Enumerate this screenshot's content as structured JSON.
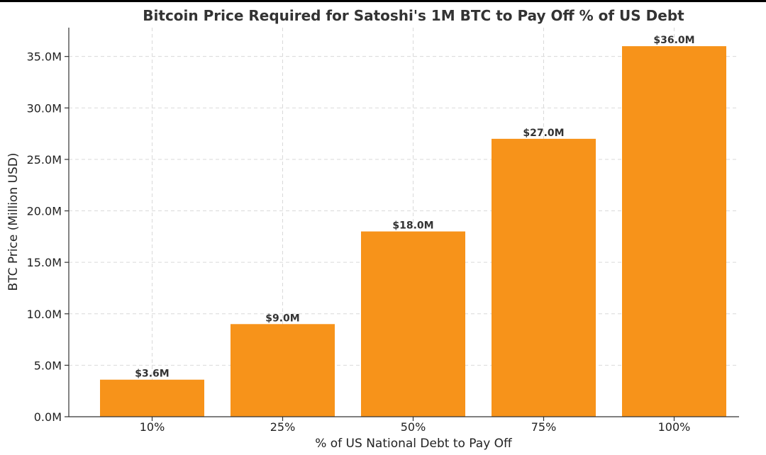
{
  "chart_data": {
    "type": "bar",
    "title": "Bitcoin Price Required for Satoshi's 1M BTC to Pay Off % of US Debt",
    "xlabel": "% of US National Debt to Pay Off",
    "ylabel": "BTC Price (Million USD)",
    "categories": [
      "10%",
      "25%",
      "50%",
      "75%",
      "100%"
    ],
    "values": [
      3.6,
      9.0,
      18.0,
      27.0,
      36.0
    ],
    "data_labels": [
      "$3.6M",
      "$9.0M",
      "$18.0M",
      "$27.0M",
      "$36.0M"
    ],
    "ylim": [
      0,
      37.8
    ],
    "yticks": [
      0,
      5,
      10,
      15,
      20,
      25,
      30,
      35
    ],
    "ytick_labels": [
      "0.0M",
      "5.0M",
      "10.0M",
      "15.0M",
      "20.0M",
      "25.0M",
      "30.0M",
      "35.0M"
    ],
    "grid": true,
    "grid_style": "dashed",
    "bar_color": "#F7931A",
    "text_color": "#333333",
    "grid_color": "#D9D9D9"
  }
}
